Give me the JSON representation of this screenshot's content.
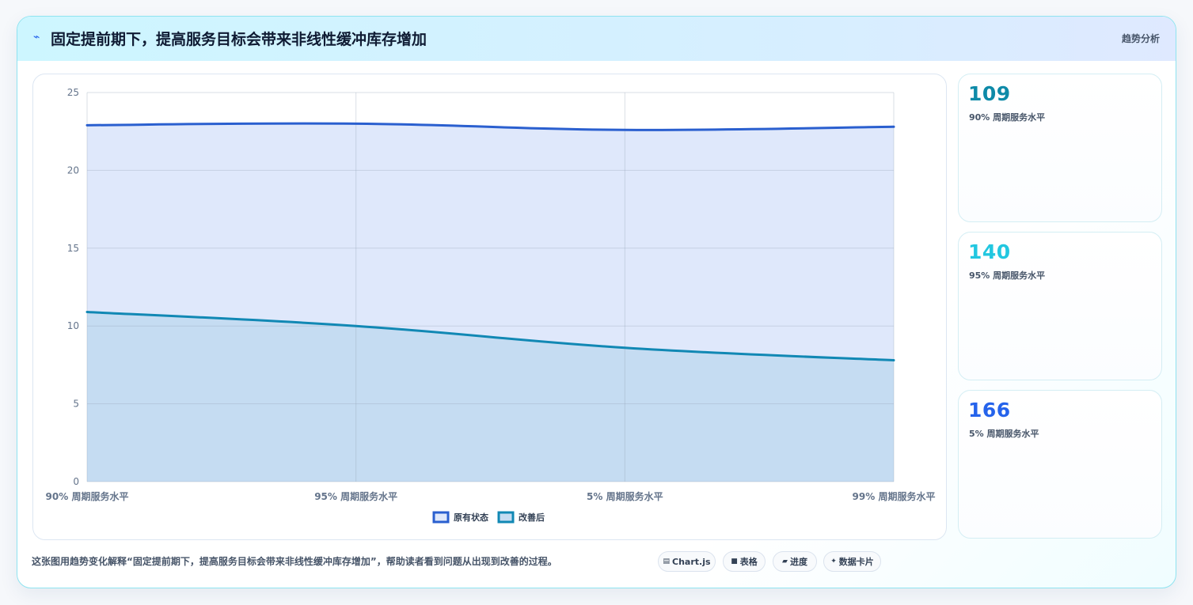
{
  "header": {
    "icon": "sparkline-icon",
    "title": "固定提前期下，提高服务目标会带来非线性缓冲库存增加",
    "tag": "趋势分析"
  },
  "chart_data": {
    "type": "area",
    "title": "",
    "xlabel": "",
    "ylabel": "",
    "categories": [
      "90% 周期服务水平",
      "95% 周期服务水平",
      "5% 周期服务水平",
      "99% 周期服务水平"
    ],
    "ylim": [
      0,
      25
    ],
    "yticks": [
      0,
      5,
      10,
      15,
      20,
      25
    ],
    "grid": true,
    "legend_position": "bottom",
    "series": [
      {
        "name": "原有状态",
        "values": [
          22.9,
          23.0,
          22.6,
          22.8
        ],
        "color": "#2a5fcf",
        "fill": "#dfe8fb"
      },
      {
        "name": "改善后",
        "values": [
          10.9,
          10.0,
          8.6,
          7.8
        ],
        "color": "#1188b4",
        "fill": "#c5dcf2"
      }
    ]
  },
  "stats": [
    {
      "value": "109",
      "label": "90% 周期服务水平",
      "color": "#0e8aa8"
    },
    {
      "value": "140",
      "label": "95% 周期服务水平",
      "color": "#22c7e0"
    },
    {
      "value": "166",
      "label": "5% 周期服务水平",
      "color": "#2563eb"
    }
  ],
  "footer": {
    "caption": "这张图用趋势变化解释“固定提前期下，提高服务目标会带来非线性缓冲库存增加”，帮助读者看到问题从出现到改善的过程。",
    "chips": [
      {
        "icon": "chart-icon",
        "glyph": "▤",
        "label": "Chart.js"
      },
      {
        "icon": "table-icon",
        "glyph": "■",
        "label": "表格"
      },
      {
        "icon": "progress-icon",
        "glyph": "▰",
        "label": "进度"
      },
      {
        "icon": "sparkle-icon",
        "glyph": "✦",
        "label": "数据卡片"
      }
    ]
  }
}
